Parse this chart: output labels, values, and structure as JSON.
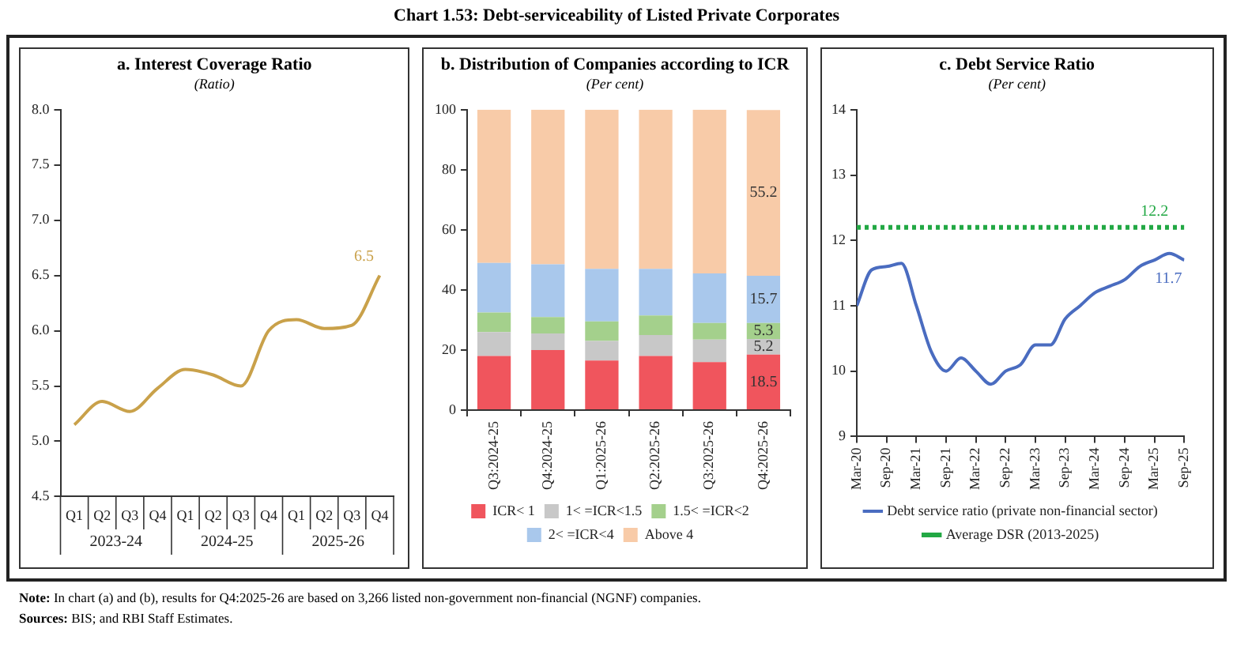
{
  "chart_data": [
    {
      "type": "line",
      "title": "a. Interest Coverage Ratio",
      "subtitle": "(Ratio)",
      "categories": [
        "Q1",
        "Q2",
        "Q3",
        "Q4",
        "Q1",
        "Q2",
        "Q3",
        "Q4",
        "Q1",
        "Q2",
        "Q3",
        "Q4"
      ],
      "series": [
        {
          "color": "#c9a14a",
          "values": [
            5.15,
            5.36,
            5.27,
            5.48,
            5.65,
            5.6,
            5.5,
            6.0,
            6.1,
            6.02,
            6.05,
            6.5
          ],
          "value_labels": [
            null,
            null,
            null,
            null,
            null,
            null,
            null,
            null,
            null,
            null,
            null,
            "6.5"
          ]
        }
      ],
      "ylim": [
        4.5,
        8
      ],
      "yticks": [
        {
          "value": 4.5,
          "label": "4.5"
        },
        {
          "value": 5,
          "label": "5.0"
        },
        {
          "value": 5.5,
          "label": "5.5"
        },
        {
          "value": 6,
          "label": "6.0"
        },
        {
          "value": 6.5,
          "label": "6.5"
        },
        {
          "value": 7,
          "label": "7.0"
        },
        {
          "value": 7.5,
          "label": "7.5"
        },
        {
          "value": 8,
          "label": "8.0"
        }
      ],
      "annotations": [
        "2023-24",
        "2024-25",
        "2025-26"
      ],
      "grid": false,
      "legend": false,
      "marker": "none",
      "line_style": "solid"
    },
    {
      "type": "bar",
      "title": "b. Distribution of Companies according to ICR",
      "subtitle": "(Per cent)",
      "stacked": true,
      "categories": [
        "Q3:2024-25",
        "Q4:2024-25",
        "Q1:2025-26",
        "Q2:2025-26",
        "Q3:2025-26",
        "Q4:2025-26"
      ],
      "series": [
        {
          "name": "ICR< 1",
          "color": "#f0555d",
          "values": [
            18,
            20,
            16.5,
            18,
            16,
            18.5
          ],
          "value_labels": [
            null,
            null,
            null,
            null,
            null,
            "18.5"
          ]
        },
        {
          "name": "1< =ICR<1.5",
          "color": "#c8c8c8",
          "values": [
            8,
            5.5,
            6.5,
            7,
            7.5,
            5.2
          ],
          "value_labels": [
            null,
            null,
            null,
            null,
            null,
            "5.2"
          ]
        },
        {
          "name": "1.5< =ICR<2",
          "color": "#a4d08c",
          "values": [
            6.5,
            5.5,
            6.5,
            6.5,
            5.5,
            5.3
          ],
          "value_labels": [
            null,
            null,
            null,
            null,
            null,
            "5.3"
          ]
        },
        {
          "name": "2< =ICR<4",
          "color": "#a9c8ec",
          "values": [
            16.5,
            17.5,
            17.5,
            15.5,
            16.5,
            15.7
          ],
          "value_labels": [
            null,
            null,
            null,
            null,
            null,
            "15.7"
          ]
        },
        {
          "name": "Above 4",
          "color": "#f8cba8",
          "values": [
            51,
            51.5,
            53,
            53,
            54.5,
            55.2
          ],
          "value_labels": [
            null,
            null,
            null,
            null,
            null,
            "55.2"
          ]
        }
      ],
      "ylim": [
        0,
        100
      ],
      "yticks": [
        0,
        20,
        40,
        60,
        80,
        100
      ],
      "grid": false,
      "legend": "bottom",
      "annotations": [
        "Chart 1.53: Debt-serviceability of Listed Private Corporates"
      ]
    },
    {
      "type": "line",
      "title": "c. Debt Service Ratio",
      "subtitle": "(Per cent)",
      "x": [
        "2020-03",
        "2020-06",
        "2020-09",
        "2020-12",
        "2021-03",
        "2021-06",
        "2021-09",
        "2021-12",
        "2022-03",
        "2022-06",
        "2022-09",
        "2022-12",
        "2023-03",
        "2023-06",
        "2023-09",
        "2023-12",
        "2024-03",
        "2024-06",
        "2024-09",
        "2024-12",
        "2025-03",
        "2025-06",
        "2025-09"
      ],
      "series": [
        {
          "name": "Debt service ratio (private non-financial sector)",
          "color": "#4a6cc0",
          "values": [
            11.0,
            11.55,
            11.6,
            11.65,
            11.0,
            10.3,
            10.0,
            10.2,
            10.0,
            9.8,
            10.0,
            10.1,
            10.4,
            10.4,
            10.8,
            11.0,
            11.2,
            11.3,
            11.4,
            11.6,
            11.7,
            11.8,
            11.7
          ],
          "value_labels": [
            null,
            null,
            null,
            null,
            null,
            null,
            null,
            null,
            null,
            null,
            null,
            null,
            null,
            null,
            null,
            null,
            null,
            null,
            null,
            null,
            null,
            null,
            "11.7"
          ]
        }
      ],
      "ref_lines": [
        {
          "axis": "y",
          "value": 12.2,
          "label": "Average DSR (2013-2025)",
          "color": "#22a844",
          "line_style": "dotted"
        }
      ],
      "xlim": [
        "2020-03",
        "2025-09"
      ],
      "xticks": [
        {
          "value": "2020-03",
          "label": "Mar-20"
        },
        {
          "value": "2020-09",
          "label": "Sep-20"
        },
        {
          "value": "2021-03",
          "label": "Mar-21"
        },
        {
          "value": "2021-09",
          "label": "Sep-21"
        },
        {
          "value": "2022-03",
          "label": "Mar-22"
        },
        {
          "value": "2022-09",
          "label": "Sep-22"
        },
        {
          "value": "2023-03",
          "label": "Mar-23"
        },
        {
          "value": "2023-09",
          "label": "Sep-23"
        },
        {
          "value": "2024-03",
          "label": "Mar-24"
        },
        {
          "value": "2024-09",
          "label": "Sep-24"
        },
        {
          "value": "2025-03",
          "label": "Mar-25"
        },
        {
          "value": "2025-09",
          "label": "Sep-25"
        }
      ],
      "ylim": [
        9,
        14
      ],
      "yticks": [
        9,
        10,
        11,
        12,
        13,
        14
      ],
      "grid": false,
      "legend": "bottom",
      "marker": "none",
      "line_style": "solid",
      "annotations": [
        {
          "text": "12.2",
          "x": "2025-03",
          "y": 12.2
        },
        "Note: In chart (a) and (b), results for Q4:2025-26 are based on 3,266 listed non-government non-financial (NGNF) companies.",
        "Sources: BIS; and RBI Staff Estimates."
      ]
    }
  ]
}
